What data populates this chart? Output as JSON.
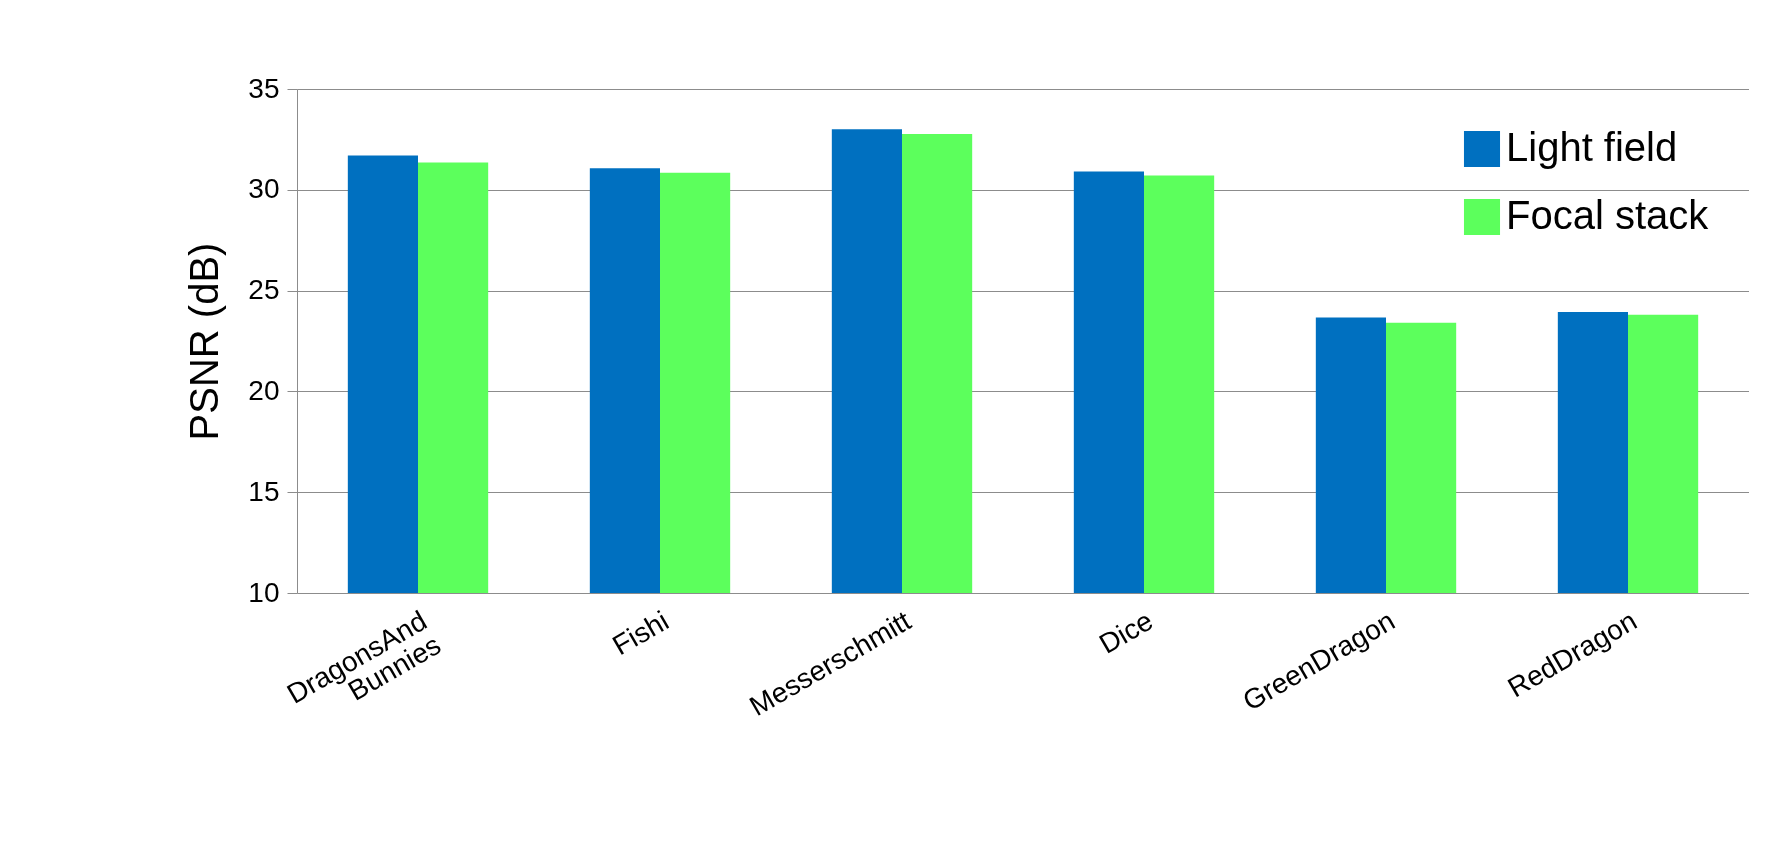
{
  "chart_data": {
    "type": "bar",
    "ylabel": "PSNR (dB)",
    "categories": [
      "DragonsAnd\nBunnies",
      "Fishi",
      "Messerschmitt",
      "Dice",
      "GreenDragon",
      "RedDragon"
    ],
    "series": [
      {
        "name": "Light field",
        "color": "#0070c0",
        "values": [
          31.7,
          31.07,
          33.0,
          30.91,
          23.67,
          23.94
        ]
      },
      {
        "name": "Focal stack",
        "color": "#5cff5c",
        "values": [
          31.35,
          30.84,
          32.77,
          30.71,
          23.4,
          23.8
        ]
      }
    ],
    "ylim": [
      10,
      35
    ],
    "yticks": [
      10,
      15,
      20,
      25,
      30,
      35
    ],
    "grid": "y",
    "legend": "top right"
  }
}
